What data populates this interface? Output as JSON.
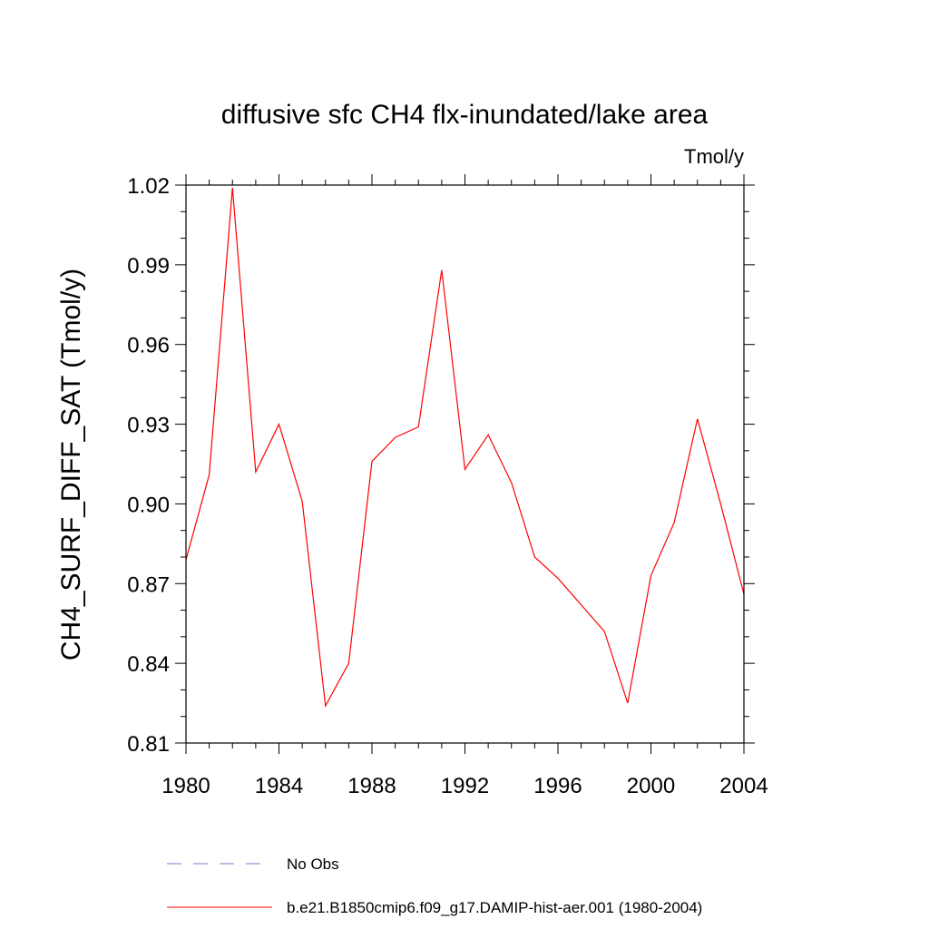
{
  "chart_data": {
    "type": "line",
    "title": "diffusive sfc CH4 flx-inundated/lake area",
    "units_label": "Tmol/y",
    "xlabel": "",
    "ylabel": "CH4_SURF_DIFF_SAT  (Tmol/y)",
    "xlim": [
      1980,
      2004
    ],
    "ylim": [
      0.81,
      1.02
    ],
    "x_ticks": [
      1980,
      1984,
      1988,
      1992,
      1996,
      2000,
      2004
    ],
    "x_tick_labels": [
      "1980",
      "1984",
      "1988",
      "1992",
      "1996",
      "2000",
      "2004"
    ],
    "y_ticks": [
      0.81,
      0.84,
      0.87,
      0.9,
      0.93,
      0.96,
      0.99,
      1.02
    ],
    "y_tick_labels": [
      "0.81",
      "0.84",
      "0.87",
      "0.90",
      "0.93",
      "0.96",
      "0.99",
      "1.02"
    ],
    "grid": false,
    "legend_position": "bottom",
    "series": [
      {
        "name": "b.e21.B1850cmip6.f09_g17.DAMIP-hist-aer.001 (1980-2004)",
        "color": "#ff0000",
        "style": "solid",
        "x": [
          1980,
          1981,
          1982,
          1983,
          1984,
          1985,
          1986,
          1987,
          1988,
          1989,
          1990,
          1991,
          1992,
          1993,
          1994,
          1995,
          1996,
          1997,
          1998,
          1999,
          2000,
          2001,
          2002,
          2003,
          2004
        ],
        "y": [
          0.879,
          0.911,
          1.019,
          0.912,
          0.93,
          0.901,
          0.824,
          0.84,
          0.916,
          0.925,
          0.929,
          0.988,
          0.913,
          0.926,
          0.908,
          0.88,
          0.872,
          0.862,
          0.852,
          0.825,
          0.873,
          0.893,
          0.932,
          0.9,
          0.866
        ]
      }
    ],
    "legend": [
      {
        "label": "No Obs",
        "color": "#7b7bc8",
        "style": "dashed"
      },
      {
        "label": "b.e21.B1850cmip6.f09_g17.DAMIP-hist-aer.001 (1980-2004)",
        "color": "#ff0000",
        "style": "solid"
      }
    ]
  }
}
